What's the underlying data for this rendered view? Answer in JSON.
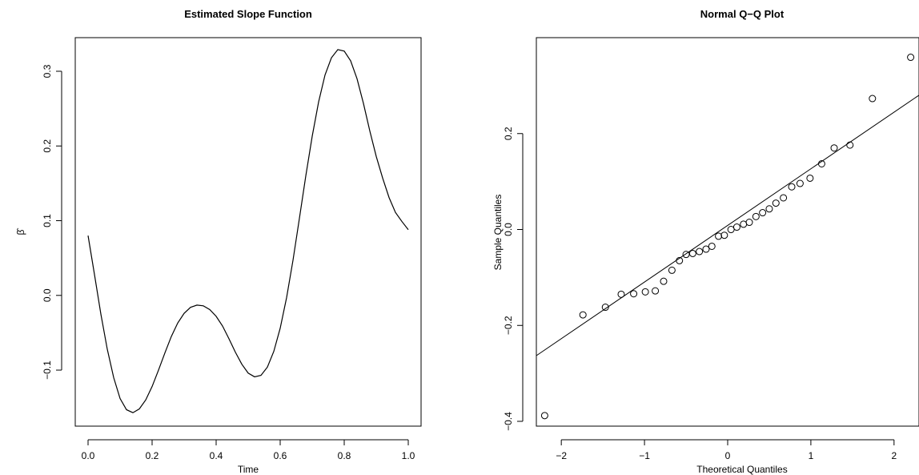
{
  "chart_data": [
    {
      "type": "line",
      "title": "Estimated Slope Function",
      "xlabel": "Time",
      "ylabel": "β̂",
      "xlim": [
        -0.04,
        1.04
      ],
      "ylim": [
        -0.175,
        0.345
      ],
      "x_ticks": [
        0.0,
        0.2,
        0.4,
        0.6,
        0.8,
        1.0
      ],
      "x_tick_labels": [
        "0.0",
        "0.2",
        "0.4",
        "0.6",
        "0.8",
        "1.0"
      ],
      "y_ticks": [
        -0.1,
        0.0,
        0.1,
        0.2,
        0.3
      ],
      "y_tick_labels": [
        "−0.1",
        "0.0",
        "0.1",
        "0.2",
        "0.3"
      ],
      "grid": false,
      "legend": "none",
      "series": [
        {
          "x": [
            0.0,
            0.02,
            0.04,
            0.06,
            0.08,
            0.1,
            0.12,
            0.14,
            0.16,
            0.18,
            0.2,
            0.22,
            0.24,
            0.26,
            0.28,
            0.3,
            0.32,
            0.34,
            0.36,
            0.38,
            0.4,
            0.42,
            0.44,
            0.46,
            0.48,
            0.5,
            0.52,
            0.54,
            0.56,
            0.58,
            0.6,
            0.62,
            0.64,
            0.66,
            0.68,
            0.7,
            0.72,
            0.74,
            0.76,
            0.78,
            0.8,
            0.82,
            0.84,
            0.86,
            0.88,
            0.9,
            0.92,
            0.94,
            0.96,
            0.98,
            1.0
          ],
          "y": [
            0.08,
            0.028,
            -0.025,
            -0.072,
            -0.11,
            -0.138,
            -0.153,
            -0.157,
            -0.152,
            -0.14,
            -0.122,
            -0.1,
            -0.077,
            -0.055,
            -0.037,
            -0.024,
            -0.016,
            -0.013,
            -0.014,
            -0.019,
            -0.028,
            -0.041,
            -0.058,
            -0.076,
            -0.092,
            -0.104,
            -0.109,
            -0.107,
            -0.096,
            -0.075,
            -0.044,
            -0.003,
            0.047,
            0.103,
            0.16,
            0.213,
            0.259,
            0.295,
            0.318,
            0.329,
            0.327,
            0.314,
            0.29,
            0.257,
            0.22,
            0.186,
            0.157,
            0.131,
            0.111,
            0.099,
            0.088
          ]
        }
      ]
    },
    {
      "type": "scatter",
      "title": "Normal Q−Q Plot",
      "xlabel": "Theoretical Quantiles",
      "ylabel": "Sample Quantiles",
      "xlim": [
        -2.3,
        2.3
      ],
      "ylim": [
        -0.41,
        0.4
      ],
      "x_ticks": [
        -2,
        -1,
        0,
        1,
        2
      ],
      "x_tick_labels": [
        "−2",
        "−1",
        "0",
        "1",
        "2"
      ],
      "y_ticks": [
        -0.4,
        -0.2,
        0.0,
        0.2
      ],
      "y_tick_labels": [
        "−0.4",
        "−0.2",
        "0.0",
        "0.2"
      ],
      "grid": false,
      "legend": "none",
      "points": {
        "x": [
          -2.2,
          -1.74,
          -1.47,
          -1.28,
          -1.13,
          -0.99,
          -0.87,
          -0.77,
          -0.67,
          -0.58,
          -0.5,
          -0.42,
          -0.34,
          -0.26,
          -0.19,
          -0.11,
          -0.04,
          0.04,
          0.11,
          0.19,
          0.26,
          0.34,
          0.42,
          0.5,
          0.58,
          0.67,
          0.77,
          0.87,
          0.99,
          1.13,
          1.28,
          1.47,
          1.74,
          2.2
        ],
        "y": [
          -0.388,
          -0.178,
          -0.162,
          -0.135,
          -0.134,
          -0.13,
          -0.128,
          -0.108,
          -0.085,
          -0.065,
          -0.052,
          -0.05,
          -0.046,
          -0.041,
          -0.035,
          -0.014,
          -0.012,
          0.0,
          0.005,
          0.011,
          0.015,
          0.027,
          0.035,
          0.043,
          0.055,
          0.066,
          0.089,
          0.096,
          0.107,
          0.137,
          0.17,
          0.176,
          0.273,
          0.359
        ]
      },
      "reference_line": {
        "x": [
          -2.3,
          2.3
        ],
        "y": [
          -0.263,
          0.28
        ]
      }
    }
  ]
}
